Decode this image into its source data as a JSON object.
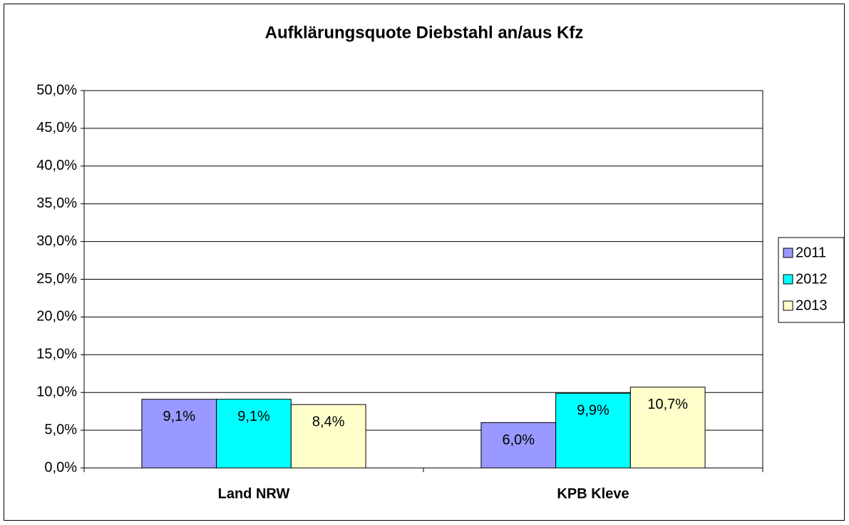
{
  "chart_data": {
    "type": "bar",
    "title": "Aufklärungsquote Diebstahl an/aus Kfz",
    "categories": [
      "Land NRW",
      "KPB Kleve"
    ],
    "series": [
      {
        "name": "2011",
        "color": "#9999ff",
        "values": [
          9.1,
          6.0
        ],
        "value_labels": [
          "9,1%",
          "6,0%"
        ]
      },
      {
        "name": "2012",
        "color": "#00ffff",
        "values": [
          9.1,
          9.9
        ],
        "value_labels": [
          "9,1%",
          "9,9%"
        ]
      },
      {
        "name": "2013",
        "color": "#ffffcc",
        "values": [
          8.4,
          10.7
        ],
        "value_labels": [
          "8,4%",
          "10,7%"
        ]
      }
    ],
    "ylim": [
      0,
      50
    ],
    "yticks": [
      {
        "value": 0,
        "label": "0,0%"
      },
      {
        "value": 5,
        "label": "5,0%"
      },
      {
        "value": 10,
        "label": "10,0%"
      },
      {
        "value": 15,
        "label": "15,0%"
      },
      {
        "value": 20,
        "label": "20,0%"
      },
      {
        "value": 25,
        "label": "25,0%"
      },
      {
        "value": 30,
        "label": "30,0%"
      },
      {
        "value": 35,
        "label": "35,0%"
      },
      {
        "value": 40,
        "label": "40,0%"
      },
      {
        "value": 45,
        "label": "45,0%"
      },
      {
        "value": 50,
        "label": "50,0%"
      }
    ],
    "grid": true,
    "legend": "right"
  }
}
